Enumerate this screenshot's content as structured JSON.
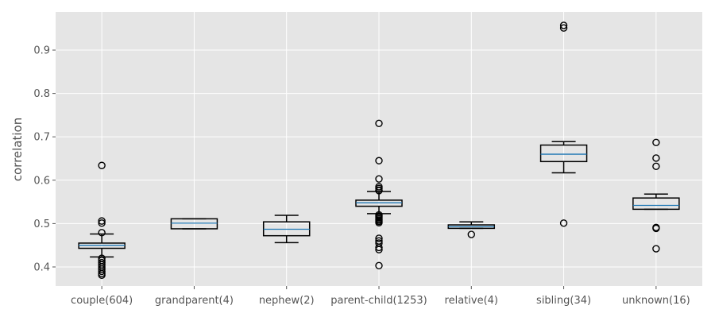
{
  "chart_data": {
    "type": "box",
    "title": "",
    "xlabel": "",
    "ylabel": "correlation",
    "ylim": [
      0.356,
      0.988
    ],
    "yticks": [
      0.4,
      0.5,
      0.6,
      0.7,
      0.8,
      0.9
    ],
    "ytick_labels": [
      "0.4",
      "0.5",
      "0.6",
      "0.7",
      "0.8",
      "0.9"
    ],
    "grid": true,
    "colors": {
      "background": "#e5e5e5",
      "grid": "#ffffff",
      "box": "#000000",
      "median": "#1f77b4",
      "tick_text": "#555555"
    },
    "categories": [
      "couple(604)",
      "grandparent(4)",
      "nephew(2)",
      "parent-child(1253)",
      "relative(4)",
      "sibling(34)",
      "unknown(16)"
    ],
    "boxes": [
      {
        "whislo": 0.423,
        "q1": 0.443,
        "med": 0.45,
        "q3": 0.455,
        "whishi": 0.476,
        "fliers": [
          0.634,
          0.506,
          0.501,
          0.479,
          0.42,
          0.415,
          0.41,
          0.405,
          0.4,
          0.395,
          0.39,
          0.385,
          0.381
        ]
      },
      {
        "whislo": 0.488,
        "q1": 0.488,
        "med": 0.501,
        "q3": 0.511,
        "whishi": 0.511,
        "fliers": []
      },
      {
        "whislo": 0.456,
        "q1": 0.472,
        "med": 0.487,
        "q3": 0.504,
        "whishi": 0.519,
        "fliers": []
      },
      {
        "whislo": 0.523,
        "q1": 0.54,
        "med": 0.548,
        "q3": 0.554,
        "whishi": 0.574,
        "fliers": [
          0.731,
          0.645,
          0.603,
          0.585,
          0.581,
          0.577,
          0.576,
          0.52,
          0.517,
          0.514,
          0.511,
          0.508,
          0.505,
          0.502,
          0.466,
          0.46,
          0.455,
          0.445,
          0.44,
          0.403
        ]
      },
      {
        "whislo": 0.489,
        "q1": 0.489,
        "med": 0.493,
        "q3": 0.497,
        "whishi": 0.504,
        "fliers": [
          0.475
        ]
      },
      {
        "whislo": 0.617,
        "q1": 0.643,
        "med": 0.66,
        "q3": 0.681,
        "whishi": 0.689,
        "fliers": [
          0.957,
          0.951,
          0.501
        ]
      },
      {
        "whislo": 0.533,
        "q1": 0.533,
        "med": 0.542,
        "q3": 0.559,
        "whishi": 0.568,
        "fliers": [
          0.687,
          0.651,
          0.632,
          0.491,
          0.489,
          0.442
        ]
      }
    ]
  }
}
